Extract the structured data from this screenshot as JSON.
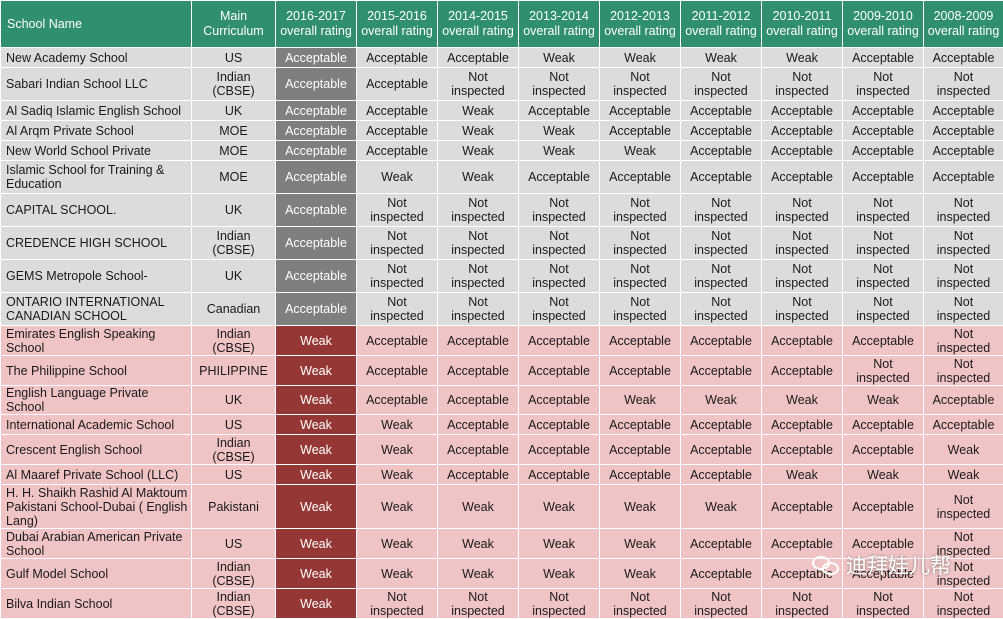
{
  "header": {
    "school_name": "School Name",
    "curriculum": "Main Curriculum",
    "years": [
      "2016-2017 overall rating",
      "2015-2016 overall rating",
      "2014-2015 overall rating",
      "2013-2014 overall rating",
      "2012-2013 overall rating",
      "2011-2012 overall rating",
      "2010-2011 overall rating",
      "2009-2010 overall rating",
      "2008-2009 overall rating"
    ]
  },
  "rows": [
    {
      "name": "New Academy School",
      "curriculum": "US",
      "ratings": [
        "Acceptable",
        "Acceptable",
        "Acceptable",
        "Weak",
        "Weak",
        "Weak",
        "Weak",
        "Acceptable",
        "Acceptable"
      ]
    },
    {
      "name": "Sabari Indian School LLC",
      "curriculum": "Indian (CBSE)",
      "ratings": [
        "Acceptable",
        "Acceptable",
        "Not inspected",
        "Not inspected",
        "Not inspected",
        "Not inspected",
        "Not inspected",
        "Not inspected",
        "Not inspected"
      ]
    },
    {
      "name": "Al Sadiq Islamic English School",
      "curriculum": "UK",
      "ratings": [
        "Acceptable",
        "Acceptable",
        "Weak",
        "Acceptable",
        "Acceptable",
        "Acceptable",
        "Acceptable",
        "Acceptable",
        "Acceptable"
      ]
    },
    {
      "name": "Al Arqm Private School",
      "curriculum": "MOE",
      "ratings": [
        "Acceptable",
        "Acceptable",
        "Weak",
        "Weak",
        "Acceptable",
        "Acceptable",
        "Acceptable",
        "Acceptable",
        "Acceptable"
      ]
    },
    {
      "name": "New World  School Private",
      "curriculum": "MOE",
      "ratings": [
        "Acceptable",
        "Acceptable",
        "Weak",
        "Weak",
        "Weak",
        "Acceptable",
        "Acceptable",
        "Acceptable",
        "Acceptable"
      ]
    },
    {
      "name": "Islamic School for Training & Education",
      "curriculum": "MOE",
      "ratings": [
        "Acceptable",
        "Weak",
        "Weak",
        "Acceptable",
        "Acceptable",
        "Acceptable",
        "Acceptable",
        "Acceptable",
        "Acceptable"
      ]
    },
    {
      "name": "CAPITAL SCHOOL.",
      "curriculum": "UK",
      "ratings": [
        "Acceptable",
        "Not inspected",
        "Not inspected",
        "Not inspected",
        "Not inspected",
        "Not inspected",
        "Not inspected",
        "Not inspected",
        "Not inspected"
      ]
    },
    {
      "name": "CREDENCE HIGH SCHOOL",
      "curriculum": "Indian (CBSE)",
      "ratings": [
        "Acceptable",
        "Not inspected",
        "Not inspected",
        "Not inspected",
        "Not inspected",
        "Not inspected",
        "Not inspected",
        "Not inspected",
        "Not inspected"
      ]
    },
    {
      "name": "GEMS Metropole School-",
      "curriculum": "UK",
      "ratings": [
        "Acceptable",
        "Not inspected",
        "Not inspected",
        "Not inspected",
        "Not inspected",
        "Not inspected",
        "Not inspected",
        "Not inspected",
        "Not inspected"
      ]
    },
    {
      "name": "ONTARIO INTERNATIONAL CANADIAN SCHOOL",
      "curriculum": "Canadian",
      "ratings": [
        "Acceptable",
        "Not inspected",
        "Not inspected",
        "Not inspected",
        "Not inspected",
        "Not inspected",
        "Not inspected",
        "Not inspected",
        "Not inspected"
      ]
    },
    {
      "name": "Emirates English Speaking School",
      "curriculum": "Indian (CBSE)",
      "ratings": [
        "Weak",
        "Acceptable",
        "Acceptable",
        "Acceptable",
        "Acceptable",
        "Acceptable",
        "Acceptable",
        "Acceptable",
        "Not inspected"
      ]
    },
    {
      "name": "The Philippine School",
      "curriculum": "PHILIPPINE",
      "ratings": [
        "Weak",
        "Acceptable",
        "Acceptable",
        "Acceptable",
        "Acceptable",
        "Acceptable",
        "Acceptable",
        "Not inspected",
        "Not inspected"
      ]
    },
    {
      "name": "English Language Private School",
      "curriculum": "UK",
      "ratings": [
        "Weak",
        "Acceptable",
        "Acceptable",
        "Acceptable",
        "Weak",
        "Weak",
        "Weak",
        "Weak",
        "Acceptable"
      ]
    },
    {
      "name": "International Academic School",
      "curriculum": "US",
      "ratings": [
        "Weak",
        "Weak",
        "Acceptable",
        "Acceptable",
        "Acceptable",
        "Acceptable",
        "Acceptable",
        "Acceptable",
        "Acceptable"
      ]
    },
    {
      "name": "Crescent English School",
      "curriculum": "Indian (CBSE)",
      "ratings": [
        "Weak",
        "Weak",
        "Acceptable",
        "Acceptable",
        "Acceptable",
        "Acceptable",
        "Acceptable",
        "Acceptable",
        "Weak"
      ]
    },
    {
      "name": "Al Maaref Private School (LLC)",
      "curriculum": "US",
      "ratings": [
        "Weak",
        "Weak",
        "Acceptable",
        "Acceptable",
        "Acceptable",
        "Acceptable",
        "Weak",
        "Weak",
        "Weak"
      ]
    },
    {
      "name": "H. H. Shaikh Rashid Al Maktoum Pakistani School-Dubai ( English Lang)",
      "curriculum": "Pakistani",
      "ratings": [
        "Weak",
        "Weak",
        "Weak",
        "Weak",
        "Weak",
        "Weak",
        "Acceptable",
        "Acceptable",
        "Not inspected"
      ]
    },
    {
      "name": "Dubai Arabian American Private School",
      "curriculum": "US",
      "ratings": [
        "Weak",
        "Weak",
        "Weak",
        "Weak",
        "Weak",
        "Acceptable",
        "Acceptable",
        "Acceptable",
        "Not inspected"
      ]
    },
    {
      "name": "Gulf Model School",
      "curriculum": "Indian (CBSE)",
      "ratings": [
        "Weak",
        "Weak",
        "Weak",
        "Weak",
        "Weak",
        "Acceptable",
        "Acceptable",
        "Acceptable",
        "Not inspected"
      ]
    },
    {
      "name": "Bilva Indian School",
      "curriculum": "Indian (CBSE)",
      "ratings": [
        "Weak",
        "Not inspected",
        "Not inspected",
        "Not inspected",
        "Not inspected",
        "Not inspected",
        "Not inspected",
        "Not inspected",
        "Not inspected"
      ]
    }
  ],
  "row_groups": [
    "grey",
    "grey",
    "grey",
    "grey",
    "grey",
    "grey",
    "grey",
    "grey",
    "grey",
    "grey",
    "pink",
    "pink",
    "pink",
    "pink",
    "pink",
    "pink",
    "pink",
    "pink",
    "pink",
    "pink"
  ],
  "colors": {
    "header_bg": "#2f8f6f",
    "acceptable_row_bg": "#dcdcdc",
    "acceptable_highlight": "#7f7f7f",
    "weak_row_bg": "#f0c4c4",
    "weak_highlight": "#953735"
  },
  "watermark": {
    "text": "迪拜娃儿帮",
    "icon": "wechat-icon"
  }
}
